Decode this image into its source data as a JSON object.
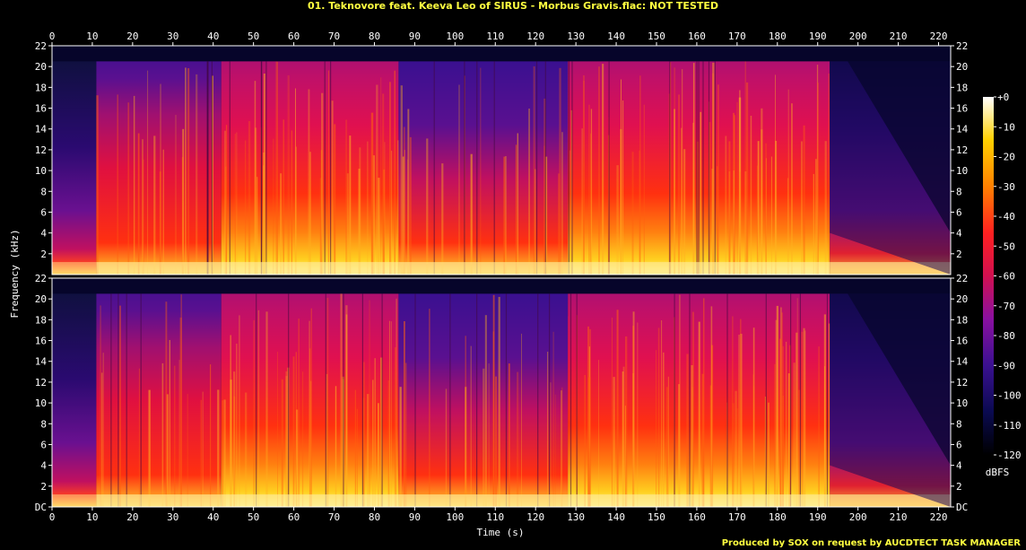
{
  "title": "01. Teknovore feat. Keeva Leo of SIRUS - Morbus Gravis.flac: NOT TESTED",
  "credit": "Produced by SOX on request by AUCDTECT TASK MANAGER",
  "chart_data": {
    "type": "heatmap",
    "title": "01. Teknovore feat. Keeva Leo of SIRUS - Morbus Gravis.flac: NOT TESTED",
    "xlabel": "Time (s)",
    "ylabel": "Frequency (kHz)",
    "xlim": [
      0,
      223
    ],
    "ylim": [
      0,
      22
    ],
    "x_ticks": [
      "0",
      "10",
      "20",
      "30",
      "40",
      "50",
      "60",
      "70",
      "80",
      "90",
      "100",
      "110",
      "120",
      "130",
      "140",
      "150",
      "160",
      "170",
      "180",
      "190",
      "200",
      "210",
      "220"
    ],
    "y_ticks": [
      "DC",
      "2",
      "4",
      "6",
      "8",
      "10",
      "12",
      "14",
      "16",
      "18",
      "20",
      "22"
    ],
    "y_ticks_top": [
      "2",
      "4",
      "6",
      "8",
      "10",
      "12",
      "14",
      "16",
      "18",
      "20",
      "22"
    ],
    "channels": 2,
    "colorbar": {
      "unit": "dBFS",
      "range": [
        -120,
        0
      ],
      "ticks": [
        "+0",
        "-10",
        "-20",
        "-30",
        "-40",
        "-50",
        "-60",
        "-70",
        "-80",
        "-90",
        "-100",
        "-110",
        "-120"
      ]
    },
    "segments": [
      {
        "start": 0,
        "end": 11,
        "level": "quiet"
      },
      {
        "start": 11,
        "end": 42,
        "level": "medium"
      },
      {
        "start": 42,
        "end": 86,
        "level": "loud"
      },
      {
        "start": 86,
        "end": 128,
        "level": "medium"
      },
      {
        "start": 128,
        "end": 193,
        "level": "loud"
      },
      {
        "start": 193,
        "end": 223,
        "level": "fade"
      }
    ],
    "lowpass_cutoff_khz": 20.5
  }
}
